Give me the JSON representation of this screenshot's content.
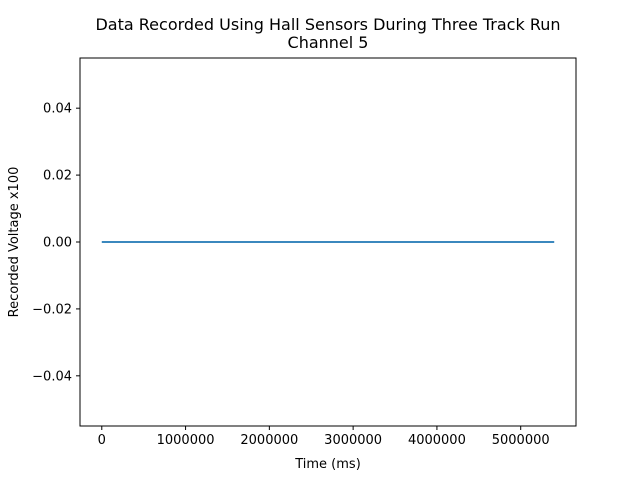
{
  "chart_data": {
    "type": "line",
    "title": "Data Recorded Using Hall Sensors During Three Track Run",
    "subtitle": "Channel 5",
    "xlabel": "Time (ms)",
    "ylabel": "Recorded Voltage x100",
    "xlim": [
      -260000,
      5660000
    ],
    "ylim": [
      -0.055,
      0.055
    ],
    "x_ticks": [
      0,
      1000000,
      2000000,
      3000000,
      4000000,
      5000000
    ],
    "x_tick_labels": [
      "0",
      "1000000",
      "2000000",
      "3000000",
      "4000000",
      "5000000"
    ],
    "y_ticks": [
      -0.04,
      -0.02,
      0.0,
      0.02,
      0.04
    ],
    "y_tick_labels": [
      "−0.04",
      "−0.02",
      "0.00",
      "0.02",
      "0.04"
    ],
    "grid": false,
    "legend": "none",
    "series": [
      {
        "color": "#1f77b4",
        "x": [
          0,
          5400000
        ],
        "y": [
          0.0,
          0.0
        ]
      }
    ]
  }
}
